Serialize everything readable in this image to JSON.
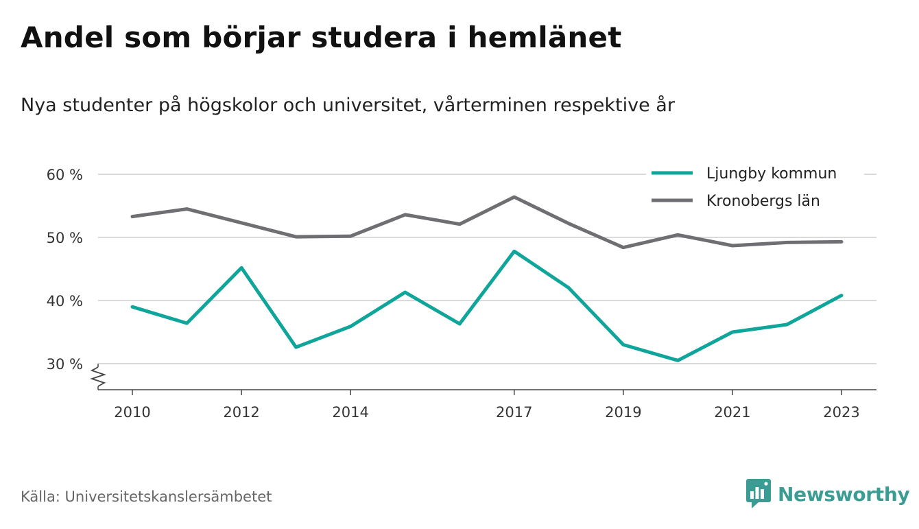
{
  "chart_data": {
    "type": "line",
    "title": "Andel som börjar studera i hemlänet",
    "subtitle": "Nya studenter på högskolor och universitet, vårterminen respektive år",
    "x": [
      2010,
      2011,
      2012,
      2013,
      2014,
      2015,
      2016,
      2017,
      2018,
      2019,
      2020,
      2021,
      2022,
      2023
    ],
    "x_tick_labels": [
      "2010",
      "2012",
      "2014",
      "2017",
      "2019",
      "2021",
      "2023"
    ],
    "y_ticks": [
      30,
      40,
      50,
      60
    ],
    "y_tick_labels": [
      "30 %",
      "40 %",
      "50 %",
      "60 %"
    ],
    "ylim": [
      26,
      60
    ],
    "y_axis_broken": true,
    "grid": true,
    "legend_position": "top-right",
    "series": [
      {
        "name": "Ljungby kommun",
        "color": "#0fa59a",
        "values": [
          39.0,
          36.4,
          45.2,
          32.6,
          35.9,
          41.3,
          36.3,
          47.8,
          42.0,
          33.0,
          30.5,
          35.0,
          36.2,
          40.8
        ]
      },
      {
        "name": "Kronobergs län",
        "color": "#6e6e73",
        "values": [
          53.3,
          54.5,
          52.3,
          50.1,
          50.2,
          53.6,
          52.1,
          56.4,
          52.2,
          48.4,
          50.4,
          48.7,
          49.2,
          49.3
        ]
      }
    ],
    "source": "Källa: Universitetskanslersämbetet"
  },
  "logo": {
    "text": "Newsworthy",
    "color": "#3b9c93",
    "icon": "bar-chart-speech-bubble-icon"
  }
}
